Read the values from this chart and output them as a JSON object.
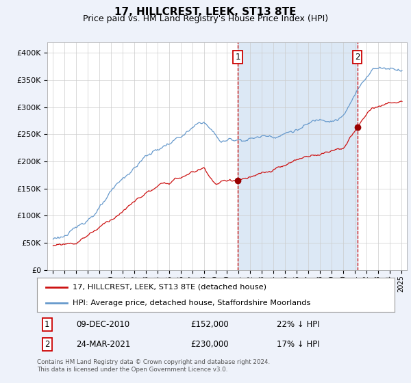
{
  "title": "17, HILLCREST, LEEK, ST13 8TE",
  "subtitle": "Price paid vs. HM Land Registry's House Price Index (HPI)",
  "hpi_label": "HPI: Average price, detached house, Staffordshire Moorlands",
  "property_label": "17, HILLCREST, LEEK, ST13 8TE (detached house)",
  "footnote": "Contains HM Land Registry data © Crown copyright and database right 2024.\nThis data is licensed under the Open Government Licence v3.0.",
  "transaction1_date": "09-DEC-2010",
  "transaction1_price": "£152,000",
  "transaction1_hpi": "22% ↓ HPI",
  "transaction2_date": "24-MAR-2021",
  "transaction2_price": "£230,000",
  "transaction2_hpi": "17% ↓ HPI",
  "vline1_x": 2010.92,
  "vline2_x": 2021.22,
  "background_color": "#eef2fa",
  "plot_bg_color": "#ffffff",
  "shade_color": "#dce8f5",
  "hpi_line_color": "#6699cc",
  "property_line_color": "#cc1111",
  "vline_color": "#cc0000",
  "marker_color": "#990000",
  "ylim_min": 0,
  "ylim_max": 420000,
  "xlim_min": 1994.5,
  "xlim_max": 2025.5
}
